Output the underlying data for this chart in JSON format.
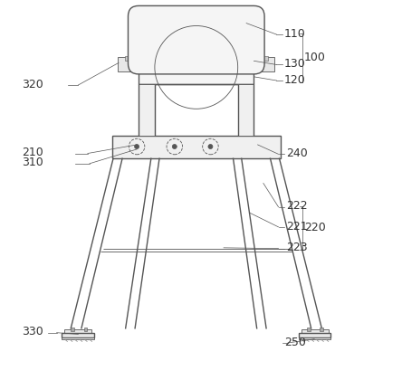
{
  "bg_color": "#ffffff",
  "line_color": "#555555",
  "line_width": 1.0,
  "thin_line": 0.6,
  "label_fontsize": 9,
  "label_color": "#333333",
  "annotation_color": "#555555",
  "annot_lw": 0.5
}
